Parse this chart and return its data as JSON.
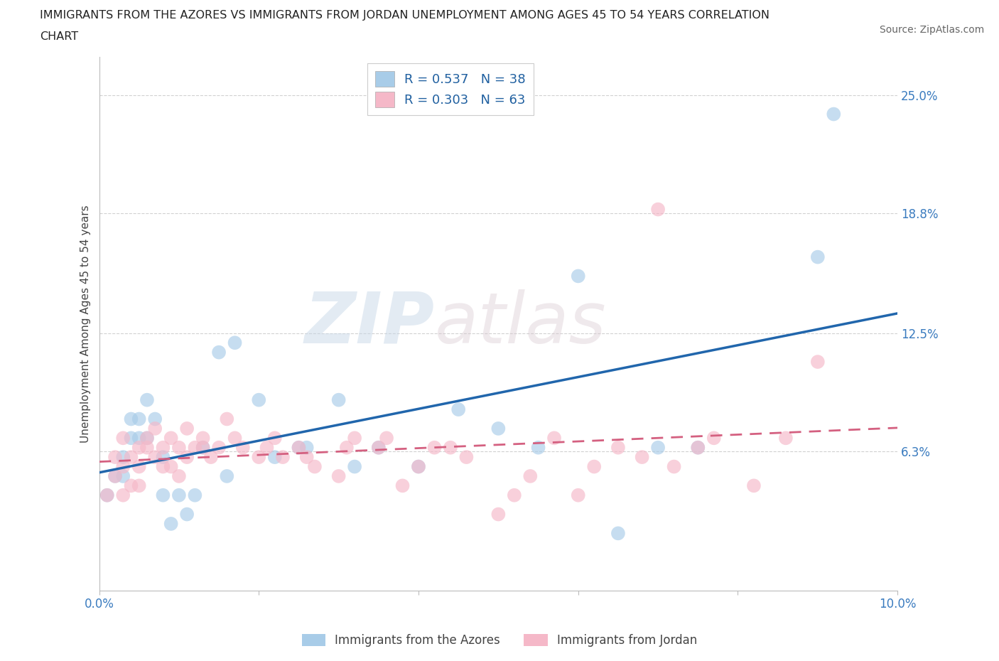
{
  "title_line1": "IMMIGRANTS FROM THE AZORES VS IMMIGRANTS FROM JORDAN UNEMPLOYMENT AMONG AGES 45 TO 54 YEARS CORRELATION",
  "title_line2": "CHART",
  "source": "Source: ZipAtlas.com",
  "ylabel": "Unemployment Among Ages 45 to 54 years",
  "xlim": [
    0.0,
    0.1
  ],
  "ylim": [
    -0.01,
    0.27
  ],
  "yticks": [
    0.063,
    0.125,
    0.188,
    0.25
  ],
  "ytick_labels": [
    "6.3%",
    "12.5%",
    "18.8%",
    "25.0%"
  ],
  "xticks": [
    0.0,
    0.1
  ],
  "xtick_labels": [
    "0.0%",
    "10.0%"
  ],
  "azores_color": "#a8cce8",
  "jordan_color": "#f5b8c8",
  "azores_line_color": "#2166ac",
  "jordan_line_color": "#d46080",
  "tick_label_color": "#3a7bbf",
  "R_azores": 0.537,
  "N_azores": 38,
  "R_jordan": 0.303,
  "N_jordan": 63,
  "legend_label_azores": "Immigrants from the Azores",
  "legend_label_jordan": "Immigrants from Jordan",
  "azores_x": [
    0.001,
    0.002,
    0.003,
    0.003,
    0.004,
    0.004,
    0.005,
    0.005,
    0.006,
    0.006,
    0.007,
    0.008,
    0.008,
    0.009,
    0.01,
    0.011,
    0.012,
    0.013,
    0.015,
    0.016,
    0.017,
    0.02,
    0.022,
    0.025,
    0.026,
    0.03,
    0.032,
    0.035,
    0.04,
    0.045,
    0.05,
    0.055,
    0.06,
    0.065,
    0.07,
    0.075,
    0.09,
    0.092
  ],
  "azores_y": [
    0.04,
    0.05,
    0.05,
    0.06,
    0.07,
    0.08,
    0.07,
    0.08,
    0.07,
    0.09,
    0.08,
    0.04,
    0.06,
    0.025,
    0.04,
    0.03,
    0.04,
    0.065,
    0.115,
    0.05,
    0.12,
    0.09,
    0.06,
    0.065,
    0.065,
    0.09,
    0.055,
    0.065,
    0.055,
    0.085,
    0.075,
    0.065,
    0.155,
    0.02,
    0.065,
    0.065,
    0.165,
    0.24
  ],
  "jordan_x": [
    0.001,
    0.002,
    0.002,
    0.003,
    0.003,
    0.003,
    0.004,
    0.004,
    0.005,
    0.005,
    0.005,
    0.006,
    0.006,
    0.007,
    0.007,
    0.008,
    0.008,
    0.009,
    0.009,
    0.01,
    0.01,
    0.011,
    0.011,
    0.012,
    0.013,
    0.013,
    0.014,
    0.015,
    0.016,
    0.017,
    0.018,
    0.02,
    0.021,
    0.022,
    0.023,
    0.025,
    0.026,
    0.027,
    0.03,
    0.031,
    0.032,
    0.035,
    0.036,
    0.038,
    0.04,
    0.042,
    0.044,
    0.046,
    0.05,
    0.052,
    0.054,
    0.057,
    0.06,
    0.062,
    0.065,
    0.068,
    0.07,
    0.072,
    0.075,
    0.077,
    0.082,
    0.086,
    0.09
  ],
  "jordan_y": [
    0.04,
    0.05,
    0.06,
    0.04,
    0.055,
    0.07,
    0.045,
    0.06,
    0.045,
    0.055,
    0.065,
    0.065,
    0.07,
    0.06,
    0.075,
    0.055,
    0.065,
    0.055,
    0.07,
    0.05,
    0.065,
    0.06,
    0.075,
    0.065,
    0.07,
    0.065,
    0.06,
    0.065,
    0.08,
    0.07,
    0.065,
    0.06,
    0.065,
    0.07,
    0.06,
    0.065,
    0.06,
    0.055,
    0.05,
    0.065,
    0.07,
    0.065,
    0.07,
    0.045,
    0.055,
    0.065,
    0.065,
    0.06,
    0.03,
    0.04,
    0.05,
    0.07,
    0.04,
    0.055,
    0.065,
    0.06,
    0.19,
    0.055,
    0.065,
    0.07,
    0.045,
    0.07,
    0.11
  ]
}
